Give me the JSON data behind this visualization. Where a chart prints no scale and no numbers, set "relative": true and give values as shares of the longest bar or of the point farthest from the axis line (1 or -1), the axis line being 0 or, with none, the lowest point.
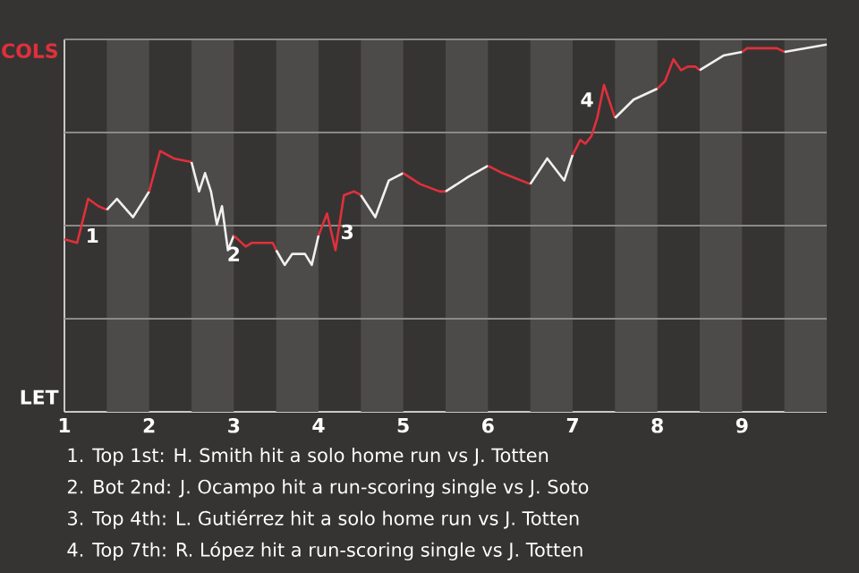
{
  "chart_data": {
    "type": "line",
    "relative": true,
    "series": [
      {
        "color": "#e0303c",
        "x": [
          1,
          1.15,
          1.28,
          1.4,
          1.5
        ],
        "values": [
          0.47,
          0.46,
          0.58,
          0.56,
          0.55
        ]
      },
      {
        "color": "#f0f0f0",
        "x": [
          1.5,
          1.62,
          1.81,
          1.92,
          2
        ],
        "values": [
          0.55,
          0.58,
          0.53,
          0.57,
          0.6
        ]
      },
      {
        "color": "#e0303c",
        "x": [
          2,
          2.13,
          2.29,
          2.5
        ],
        "values": [
          0.6,
          0.71,
          0.69,
          0.68
        ]
      },
      {
        "color": "#f0f0f0",
        "x": [
          2.5,
          2.59,
          2.66,
          2.73,
          2.8,
          2.86,
          2.93,
          3
        ],
        "values": [
          0.68,
          0.6,
          0.65,
          0.6,
          0.51,
          0.56,
          0.44,
          0.48
        ]
      },
      {
        "color": "#e0303c",
        "x": [
          3,
          3.14,
          3.21,
          3.46,
          3.5
        ],
        "values": [
          0.48,
          0.45,
          0.46,
          0.46,
          0.44
        ]
      },
      {
        "color": "#f0f0f0",
        "x": [
          3.5,
          3.6,
          3.69,
          3.84,
          3.92,
          4
        ],
        "values": [
          0.44,
          0.4,
          0.43,
          0.43,
          0.4,
          0.48
        ]
      },
      {
        "color": "#e0303c",
        "x": [
          4,
          4.1,
          4.2,
          4.3,
          4.42,
          4.5
        ],
        "values": [
          0.48,
          0.54,
          0.44,
          0.59,
          0.6,
          0.59
        ]
      },
      {
        "color": "#f0f0f0",
        "x": [
          4.5,
          4.67,
          4.83,
          5
        ],
        "values": [
          0.59,
          0.53,
          0.63,
          0.65
        ]
      },
      {
        "color": "#e0303c",
        "x": [
          5,
          5.2,
          5.43,
          5.5
        ],
        "values": [
          0.65,
          0.62,
          0.6,
          0.6
        ]
      },
      {
        "color": "#f0f0f0",
        "x": [
          5.5,
          5.77,
          6
        ],
        "values": [
          0.6,
          0.64,
          0.67
        ]
      },
      {
        "color": "#e0303c",
        "x": [
          6,
          6.17,
          6.5
        ],
        "values": [
          0.67,
          0.65,
          0.62
        ]
      },
      {
        "color": "#f0f0f0",
        "x": [
          6.5,
          6.7,
          6.9,
          7
        ],
        "values": [
          0.62,
          0.69,
          0.63,
          0.7
        ]
      },
      {
        "color": "#e0303c",
        "x": [
          7,
          7.09,
          7.15,
          7.22,
          7.29,
          7.37,
          7.5
        ],
        "values": [
          0.7,
          0.74,
          0.73,
          0.75,
          0.8,
          0.89,
          0.8
        ]
      },
      {
        "color": "#f0f0f0",
        "x": [
          7.5,
          7.72,
          8
        ],
        "values": [
          0.8,
          0.85,
          0.88
        ]
      },
      {
        "color": "#e0303c",
        "x": [
          8,
          8.09,
          8.19,
          8.28,
          8.36,
          8.45,
          8.5
        ],
        "values": [
          0.88,
          0.9,
          0.96,
          0.93,
          0.94,
          0.94,
          0.93
        ]
      },
      {
        "color": "#f0f0f0",
        "x": [
          8.5,
          8.78,
          9
        ],
        "values": [
          0.93,
          0.97,
          0.98
        ]
      },
      {
        "color": "#e0303c",
        "x": [
          9,
          9.06,
          9.41,
          9.5
        ],
        "values": [
          0.98,
          0.99,
          0.99,
          0.98
        ]
      },
      {
        "color": "#f0f0f0",
        "x": [
          9.5,
          10
        ],
        "values": [
          0.98,
          1
        ]
      }
    ],
    "xlim": [
      1,
      10
    ],
    "xticks": [
      1,
      2,
      3,
      4,
      5,
      6,
      7,
      8,
      9
    ],
    "grid": "y",
    "bands": [
      {
        "axis": "x",
        "from": 1.5,
        "to": 2,
        "color": "#4d4b49"
      },
      {
        "axis": "x",
        "from": 2.5,
        "to": 3,
        "color": "#4d4b49"
      },
      {
        "axis": "x",
        "from": 3.5,
        "to": 4,
        "color": "#4d4b49"
      },
      {
        "axis": "x",
        "from": 4.5,
        "to": 5,
        "color": "#4d4b49"
      },
      {
        "axis": "x",
        "from": 5.5,
        "to": 6,
        "color": "#4d4b49"
      },
      {
        "axis": "x",
        "from": 6.5,
        "to": 7,
        "color": "#4d4b49"
      },
      {
        "axis": "x",
        "from": 7.5,
        "to": 8,
        "color": "#4d4b49"
      },
      {
        "axis": "x",
        "from": 8.5,
        "to": 9,
        "color": "#4d4b49"
      },
      {
        "axis": "x",
        "from": 9.5,
        "to": 10,
        "color": "#4d4b49"
      }
    ],
    "annotations": [
      "COLS",
      "LET",
      "1",
      "2",
      "3",
      "4",
      "1. Top 1st: H. Smith hit a solo home run vs J. Totten",
      "2. Bot 2nd: J. Ocampo hit a run-scoring single vs J. Soto",
      "3. Top 4th: L. Gutiérrez hit a solo home run vs J. Totten",
      "4. Top 7th: R. López hit a run-scoring single vs J. Totten"
    ]
  }
}
